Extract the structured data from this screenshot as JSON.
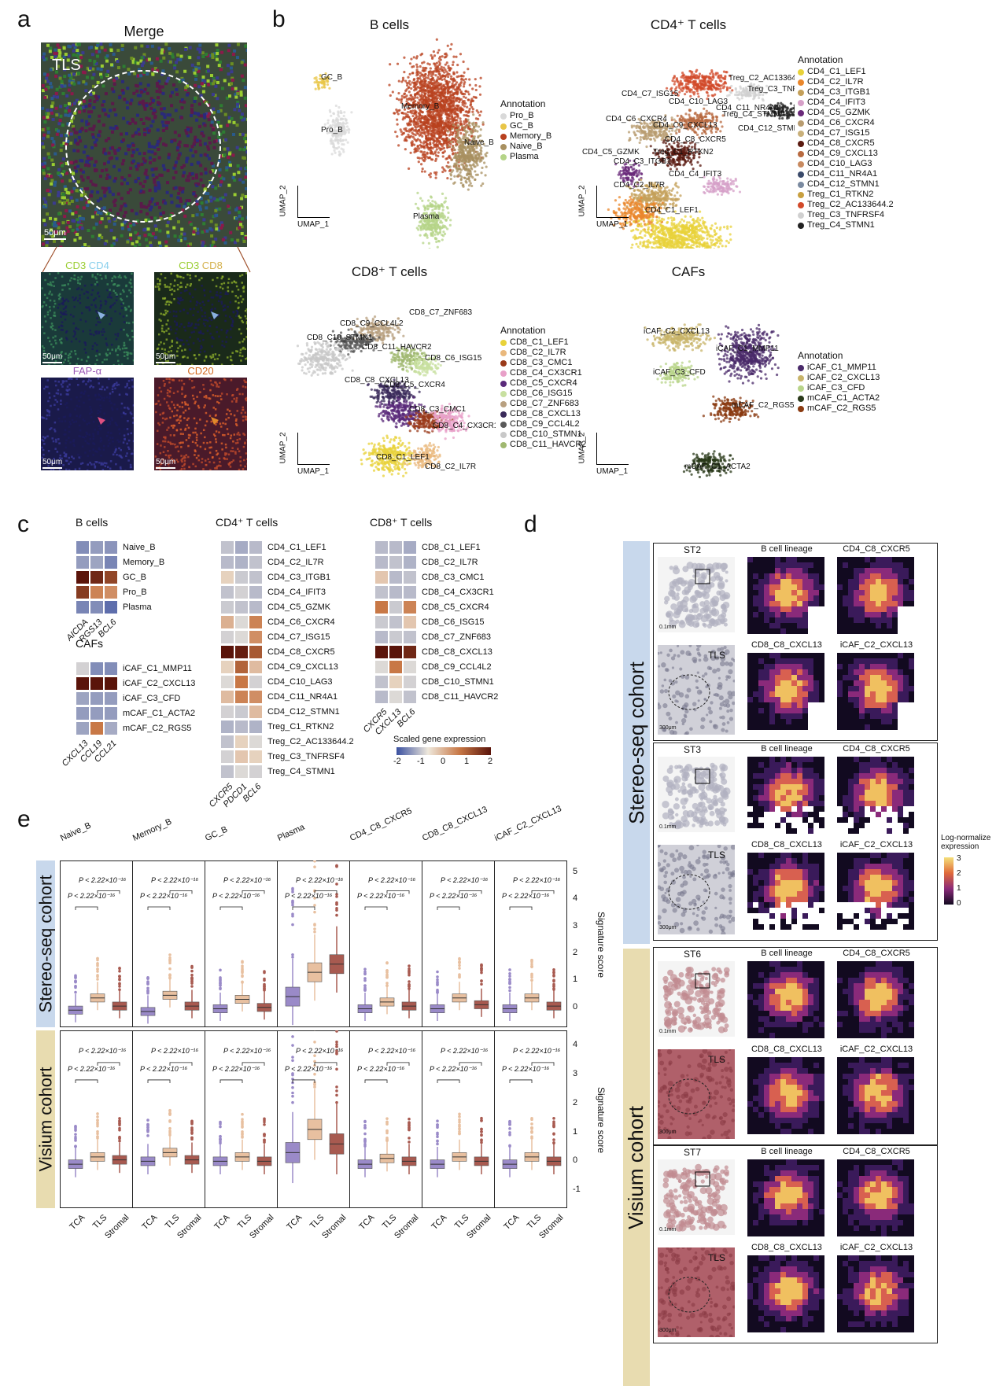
{
  "panel_letters": [
    "a",
    "b",
    "c",
    "d",
    "e"
  ],
  "panel_a": {
    "merge_title": "Merge",
    "tls_label": "TLS",
    "scale": "50μm",
    "sub": [
      {
        "label_parts": [
          {
            "t": "CD3 ",
            "c": "#9acd32"
          },
          {
            "t": "CD4",
            "c": "#87ceeb"
          }
        ]
      },
      {
        "label_parts": [
          {
            "t": "CD3 ",
            "c": "#9acd32"
          },
          {
            "t": "CD8",
            "c": "#d4b04a"
          }
        ]
      },
      {
        "label_parts": [
          {
            "t": "FAP-α",
            "c": "#9b59b6"
          }
        ]
      },
      {
        "label_parts": [
          {
            "t": "CD20",
            "c": "#d2691e"
          }
        ]
      }
    ]
  },
  "panel_b": {
    "umap1": "UMAP_1",
    "umap2": "UMAP_2",
    "annotation": "Annotation",
    "bcells": {
      "title": "B cells",
      "legend": [
        {
          "name": "Pro_B",
          "color": "#d9d9d9"
        },
        {
          "name": "GC_B",
          "color": "#e8c547"
        },
        {
          "name": "Memory_B",
          "color": "#b8401e"
        },
        {
          "name": "Naive_B",
          "color": "#a89060"
        },
        {
          "name": "Plasma",
          "color": "#b5d488"
        }
      ],
      "labels": [
        "GC_B",
        "Pro_B",
        "Memory_B",
        "Naive_B",
        "Plasma"
      ]
    },
    "cd4": {
      "title": "CD4⁺ T cells",
      "legend": [
        {
          "name": "CD4_C1_LEF1",
          "color": "#e8d23a"
        },
        {
          "name": "CD4_C2_IL7R",
          "color": "#e9872c"
        },
        {
          "name": "CD4_C3_ITGB1",
          "color": "#c4a05a"
        },
        {
          "name": "CD4_C4_IFIT3",
          "color": "#d6a0c8"
        },
        {
          "name": "CD4_C5_GZMK",
          "color": "#6a2a7a"
        },
        {
          "name": "CD4_C6_CXCR4",
          "color": "#b89c70"
        },
        {
          "name": "CD4_C7_ISG15",
          "color": "#c9b07a"
        },
        {
          "name": "CD4_C8_CXCR5",
          "color": "#5a1a10"
        },
        {
          "name": "CD4_C9_CXCL13",
          "color": "#b86a40"
        },
        {
          "name": "CD4_C10_LAG3",
          "color": "#c88a60"
        },
        {
          "name": "CD4_C11_NR4A1",
          "color": "#3a4a6a"
        },
        {
          "name": "CD4_C12_STMN1",
          "color": "#7a8aa0"
        },
        {
          "name": "Treg_C1_RTKN2",
          "color": "#c8a040"
        },
        {
          "name": "Treg_C2_AC133644.2",
          "color": "#d24a2a"
        },
        {
          "name": "Treg_C3_TNFRSF4",
          "color": "#d0d0d0"
        },
        {
          "name": "Treg_C4_STMN1",
          "color": "#222222"
        }
      ],
      "labels": [
        "Treg_C2_AC133644.2",
        "Treg_C3_TNFRSF4",
        "CD4_C7_ISG15",
        "CD4_C10_LAG3",
        "CD4_C11_NR4A1",
        "Treg_C4_STMN1",
        "CD4_C6_CXCR4",
        "CD4_C9_CXCL13",
        "CD4_C12_STMN1",
        "CD4_C8_CXCR5",
        "CD4_C5_GZMK",
        "Treg_C1_RTKN2",
        "CD4_C3_ITGB1",
        "CD4_C4_IFIT3",
        "CD4_C2_IL7R",
        "CD4_C1_LEF1"
      ]
    },
    "cd8": {
      "title": "CD8⁺ T cells",
      "legend": [
        {
          "name": "CD8_C1_LEF1",
          "color": "#e8d23a"
        },
        {
          "name": "CD8_C2_IL7R",
          "color": "#e9b87c"
        },
        {
          "name": "CD8_C3_CMC1",
          "color": "#9a3a1a"
        },
        {
          "name": "CD8_C4_CX3CR1",
          "color": "#e8a0c8"
        },
        {
          "name": "CD8_C5_CXCR4",
          "color": "#5a2a7a"
        },
        {
          "name": "CD8_C6_ISG15",
          "color": "#c8e0a0"
        },
        {
          "name": "CD8_C7_ZNF683",
          "color": "#b8a080"
        },
        {
          "name": "CD8_C8_CXCL13",
          "color": "#3a2a5a"
        },
        {
          "name": "CD8_C9_CCL4L2",
          "color": "#5a5a5a"
        },
        {
          "name": "CD8_C10_STMN1",
          "color": "#c8c8c8"
        },
        {
          "name": "CD8_C11_HAVCR2",
          "color": "#a0b870"
        }
      ],
      "labels": [
        "CD8_C7_ZNF683",
        "CD8_C9_CCL4L2",
        "CD8_C10_STMN1",
        "CD8_C11_HAVCR2",
        "CD8_C6_ISG15",
        "CD8_C8_CXCL13",
        "CD8_C5_CXCR4",
        "CD8_C3_CMC1",
        "CD8_C4_CX3CR1",
        "CD8_C1_LEF1",
        "CD8_C2_IL7R"
      ]
    },
    "cafs": {
      "title": "CAFs",
      "legend": [
        {
          "name": "iCAF_C1_MMP11",
          "color": "#4a2a6a"
        },
        {
          "name": "iCAF_C2_CXCL13",
          "color": "#c8b46a"
        },
        {
          "name": "iCAF_C3_CFD",
          "color": "#b8d48a"
        },
        {
          "name": "mCAF_C1_ACTA2",
          "color": "#2a3a1a"
        },
        {
          "name": "mCAF_C2_RGS5",
          "color": "#8a3a10"
        }
      ],
      "labels": [
        "iCAF_C2_CXCL13",
        "iCAF_C1_MMP11",
        "iCAF_C3_CFD",
        "mCAF_C2_RGS5",
        "mCAF_C1_ACTA2"
      ]
    }
  },
  "panel_c": {
    "bcells": {
      "title": "B cells",
      "rows": [
        "Naive_B",
        "Memory_B",
        "GC_B",
        "Pro_B",
        "Plasma"
      ],
      "cols": [
        "AICDA",
        "RGS13",
        "BCL6"
      ],
      "values": [
        [
          -1.2,
          -1.0,
          -1.1
        ],
        [
          -1.0,
          -0.9,
          -1.3
        ],
        [
          2.0,
          1.8,
          1.5
        ],
        [
          1.6,
          0.9,
          0.8
        ],
        [
          -1.3,
          -1.2,
          -1.6
        ]
      ]
    },
    "cafs": {
      "title": "CAFs",
      "rows": [
        "iCAF_C1_MMP11",
        "iCAF_C2_CXCL13",
        "iCAF_C3_CFD",
        "mCAF_C1_ACTA2",
        "mCAF_C2_RGS5"
      ],
      "cols": [
        "CXCL13",
        "CCL19",
        "CCL21"
      ],
      "values": [
        [
          -0.3,
          -1.2,
          -1.2
        ],
        [
          2.0,
          2.0,
          2.0
        ],
        [
          -0.9,
          -1.0,
          -1.0
        ],
        [
          -1.0,
          -1.0,
          -1.0
        ],
        [
          -0.9,
          1.0,
          -0.8
        ]
      ]
    },
    "cd4": {
      "title": "CD4⁺ T cells",
      "rows": [
        "CD4_C1_LEF1",
        "CD4_C2_IL7R",
        "CD4_C3_ITGB1",
        "CD4_C4_IFIT3",
        "CD4_C5_GZMK",
        "CD4_C6_CXCR4",
        "CD4_C7_ISG15",
        "CD4_C8_CXCR5",
        "CD4_C9_CXCL13",
        "CD4_C10_LAG3",
        "CD4_C11_NR4A1",
        "CD4_C12_STMN1",
        "Treg_C1_RTKN2",
        "Treg_C2_AC133644.2",
        "Treg_C3_TNFRSF4",
        "Treg_C4_STMN1"
      ],
      "cols": [
        "CXCR5",
        "PDCD1",
        "BCL6"
      ],
      "values": [
        [
          -0.5,
          -0.8,
          -0.6
        ],
        [
          -0.6,
          -0.7,
          -0.5
        ],
        [
          0.2,
          -0.4,
          -0.5
        ],
        [
          -0.5,
          -0.3,
          -0.6
        ],
        [
          -0.4,
          -0.5,
          -0.6
        ],
        [
          0.5,
          -0.2,
          0.9
        ],
        [
          -0.3,
          -0.2,
          0.8
        ],
        [
          2.2,
          1.9,
          1.3
        ],
        [
          0.2,
          1.2,
          0.4
        ],
        [
          -0.2,
          1.0,
          -0.3
        ],
        [
          0.4,
          0.9,
          0.8
        ],
        [
          -0.3,
          -0.4,
          0.4
        ],
        [
          -0.7,
          -0.6,
          -0.7
        ],
        [
          -0.5,
          0.2,
          -0.2
        ],
        [
          -0.3,
          0.3,
          0.2
        ],
        [
          -0.5,
          -0.2,
          -0.3
        ]
      ]
    },
    "cd8": {
      "title": "CD8⁺ T cells",
      "rows": [
        "CD8_C1_LEF1",
        "CD8_C2_IL7R",
        "CD8_C3_CMC1",
        "CD8_C4_CX3CR1",
        "CD8_C5_CXCR4",
        "CD8_C6_ISG15",
        "CD8_C7_ZNF683",
        "CD8_C8_CXCL13",
        "CD8_C9_CCL4L2",
        "CD8_C10_STMN1",
        "CD8_C11_HAVCR2"
      ],
      "cols": [
        "CXCR5",
        "CXCL13",
        "BCL6"
      ],
      "values": [
        [
          -0.6,
          -0.6,
          -0.8
        ],
        [
          -0.6,
          -0.5,
          -0.7
        ],
        [
          0.3,
          -0.6,
          -0.5
        ],
        [
          -0.5,
          -0.6,
          -0.6
        ],
        [
          1.0,
          -0.4,
          0.9
        ],
        [
          -0.4,
          -0.5,
          0.3
        ],
        [
          -0.6,
          -0.4,
          -0.5
        ],
        [
          2.0,
          2.0,
          1.8
        ],
        [
          -0.2,
          1.0,
          -0.2
        ],
        [
          -0.5,
          0.2,
          -0.3
        ],
        [
          -0.6,
          -0.2,
          -0.5
        ]
      ]
    },
    "scale_title": "Scaled gene expression",
    "scale_ticks": [
      "-2",
      "-1",
      "0",
      "1",
      "2"
    ]
  },
  "panel_d": {
    "stereo_label": "Stereo-seq cohort",
    "visium_label": "Visium cohort",
    "samples": [
      {
        "id": "ST2",
        "cohort": "stereo",
        "tls": "TLS",
        "scale1": "0.1mm",
        "scale2": "300μm",
        "maps": [
          "B cell lineage",
          "CD4_C8_CXCR5",
          "CD8_C8_CXCL13",
          "iCAF_C2_CXCL13"
        ]
      },
      {
        "id": "ST3",
        "cohort": "stereo",
        "tls": "TLS",
        "scale1": "0.1mm",
        "scale2": "300μm",
        "maps": [
          "B cell lineage",
          "CD4_C8_CXCR5",
          "CD8_C8_CXCL13",
          "iCAF_C2_CXCL13"
        ]
      },
      {
        "id": "ST6",
        "cohort": "visium",
        "tls": "TLS",
        "scale1": "0.1mm",
        "scale2": "300μm",
        "maps": [
          "B cell lineage",
          "CD4_C8_CXCR5",
          "CD8_C8_CXCL13",
          "iCAF_C2_CXCL13"
        ]
      },
      {
        "id": "ST7",
        "cohort": "visium",
        "tls": "TLS",
        "scale1": "0.1mm",
        "scale2": "300μm",
        "maps": [
          "B cell lineage",
          "CD4_C8_CXCR5",
          "CD8_C8_CXCL13",
          "iCAF_C2_CXCL13"
        ]
      }
    ],
    "colorbar_title": "Log-normalize expression",
    "colorbar_ticks": [
      "3",
      "2",
      "1",
      "0"
    ]
  },
  "panel_e": {
    "stereo_label": "Stereo-seq cohort",
    "visium_label": "Visium cohort",
    "ylabel": "Signature score",
    "groups": [
      "TCA",
      "TLS",
      "Stromal"
    ],
    "group_colors": [
      "#9a8ac8",
      "#e8c0a0",
      "#a85a50"
    ],
    "panels": [
      "Naive_B",
      "Memory_B",
      "GC_B",
      "Plasma",
      "CD4_C8_CXCR5",
      "CD8_C8_CXCL13",
      "iCAF_C2_CXCL13"
    ],
    "p_text": "P < 2.22×10⁻¹⁶",
    "stereo_yticks": [
      "5",
      "4",
      "3",
      "2",
      "1",
      "0"
    ],
    "visium_yticks": [
      "4",
      "3",
      "2",
      "1",
      "0",
      "-1"
    ],
    "chart_data": [
      {
        "type": "box",
        "title": "Stereo-seq cohort",
        "ylim": [
          -0.5,
          5.2
        ],
        "ylabel": "Signature score",
        "series": [
          {
            "name": "Naive_B",
            "medians": [
              -0.1,
              0.35,
              0.05
            ]
          },
          {
            "name": "Memory_B",
            "medians": [
              -0.15,
              0.45,
              0.05
            ]
          },
          {
            "name": "GC_B",
            "medians": [
              -0.05,
              0.3,
              0.0
            ]
          },
          {
            "name": "Plasma",
            "medians": [
              0.4,
              1.3,
              1.6
            ]
          },
          {
            "name": "CD4_C8_CXCR5",
            "medians": [
              -0.05,
              0.2,
              0.05
            ]
          },
          {
            "name": "CD8_C8_CXCL13",
            "medians": [
              -0.05,
              0.35,
              0.1
            ]
          },
          {
            "name": "iCAF_C2_CXCL13",
            "medians": [
              -0.05,
              0.35,
              0.05
            ]
          }
        ]
      },
      {
        "type": "box",
        "title": "Visium cohort",
        "ylim": [
          -1.4,
          4.3
        ],
        "ylabel": "Signature score",
        "series": [
          {
            "name": "Naive_B",
            "medians": [
              -0.1,
              0.15,
              0.05
            ]
          },
          {
            "name": "Memory_B",
            "medians": [
              0.0,
              0.3,
              0.05
            ]
          },
          {
            "name": "GC_B",
            "medians": [
              0.0,
              0.15,
              0.0
            ]
          },
          {
            "name": "Plasma",
            "medians": [
              0.3,
              1.1,
              0.6
            ]
          },
          {
            "name": "CD4_C8_CXCR5",
            "medians": [
              -0.1,
              0.1,
              0.0
            ]
          },
          {
            "name": "CD8_C8_CXCL13",
            "medians": [
              -0.1,
              0.15,
              0.0
            ]
          },
          {
            "name": "iCAF_C2_CXCL13",
            "medians": [
              -0.1,
              0.15,
              0.0
            ]
          }
        ]
      }
    ]
  }
}
